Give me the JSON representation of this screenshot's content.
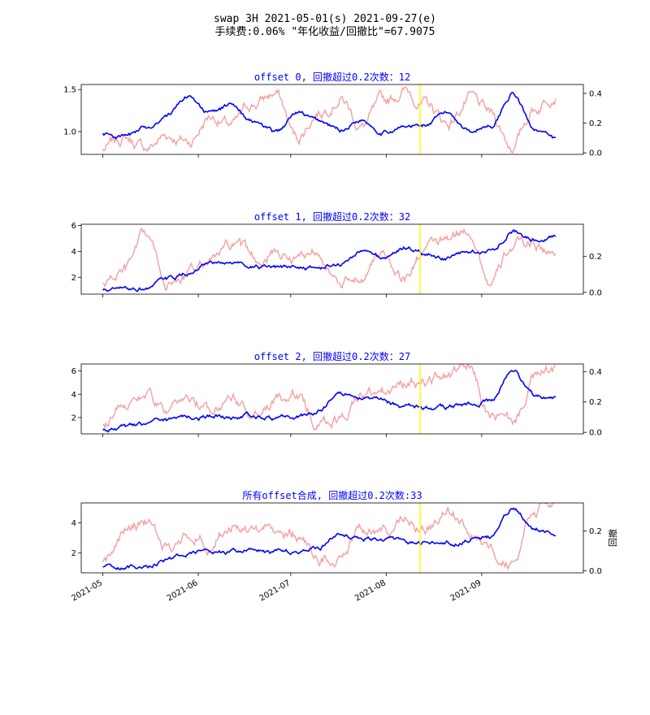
{
  "figure": {
    "title_line1": "swap 3H 2021-05-01(s) 2021-09-27(e)",
    "title_line2": "手续费:0.06% \"年化收益/回撤比\"=67.9075"
  },
  "colors": {
    "equity": "#0000ff",
    "drawdown": "#f4a0a0",
    "marker": "#ffff00",
    "subtitle": "#0000ff"
  },
  "chart_data": [
    {
      "type": "line",
      "title": "offset 0, 回撤超过0.2次数：12",
      "x": [
        "2021-05-01",
        "2021-05-08",
        "2021-05-15",
        "2021-05-22",
        "2021-05-29",
        "2021-06-05",
        "2021-06-12",
        "2021-06-19",
        "2021-06-26",
        "2021-07-03",
        "2021-07-10",
        "2021-07-17",
        "2021-07-24",
        "2021-07-31",
        "2021-08-07",
        "2021-08-14",
        "2021-08-21",
        "2021-08-28",
        "2021-09-04",
        "2021-09-11",
        "2021-09-18",
        "2021-09-25"
      ],
      "series": [
        {
          "axis": "left",
          "values": [
            0.97,
            0.93,
            1.05,
            1.2,
            1.42,
            1.22,
            1.32,
            1.12,
            0.98,
            1.22,
            1.12,
            1.02,
            1.15,
            1.0,
            1.05,
            1.08,
            1.22,
            1.02,
            1.08,
            1.45,
            1.05,
            0.9
          ]
        },
        {
          "axis": "right",
          "values": [
            0.02,
            0.1,
            0.03,
            0.12,
            0.08,
            0.25,
            0.18,
            0.33,
            0.4,
            0.1,
            0.28,
            0.38,
            0.18,
            0.33,
            0.42,
            0.32,
            0.2,
            0.36,
            0.25,
            0.05,
            0.3,
            0.42
          ]
        }
      ],
      "ylim_left": [
        0.73,
        1.56
      ],
      "yticks_left": [
        1.0,
        1.5
      ],
      "yticks_left_labels": [
        "1.0",
        "1.5"
      ],
      "ylim_right": [
        -0.01,
        0.46
      ],
      "yticks_right": [
        0.0,
        0.2,
        0.4
      ],
      "yticks_right_labels": [
        "0.0",
        "0.2",
        "0.4"
      ],
      "marker_date": "2021-08-12"
    },
    {
      "type": "line",
      "title": "offset 1, 回撤超过0.2次数：32",
      "x": [
        "2021-05-01",
        "2021-05-08",
        "2021-05-15",
        "2021-05-22",
        "2021-05-29",
        "2021-06-05",
        "2021-06-12",
        "2021-06-19",
        "2021-06-26",
        "2021-07-03",
        "2021-07-10",
        "2021-07-17",
        "2021-07-24",
        "2021-07-31",
        "2021-08-07",
        "2021-08-14",
        "2021-08-21",
        "2021-08-28",
        "2021-09-04",
        "2021-09-11",
        "2021-09-18",
        "2021-09-25"
      ],
      "series": [
        {
          "axis": "left",
          "values": [
            1.0,
            1.05,
            1.2,
            1.8,
            2.3,
            2.9,
            3.1,
            2.9,
            2.6,
            2.8,
            2.7,
            3.0,
            4.0,
            3.5,
            4.3,
            3.8,
            3.5,
            3.9,
            4.0,
            5.6,
            5.0,
            5.3
          ]
        },
        {
          "axis": "right",
          "values": [
            0.05,
            0.12,
            0.3,
            0.05,
            0.1,
            0.18,
            0.25,
            0.18,
            0.22,
            0.2,
            0.25,
            0.02,
            0.1,
            0.22,
            0.1,
            0.25,
            0.28,
            0.35,
            0.05,
            0.25,
            0.28,
            0.2
          ]
        }
      ],
      "ylim_left": [
        0.7,
        6.1
      ],
      "yticks_left": [
        2,
        4,
        6
      ],
      "yticks_left_labels": [
        "2",
        "4",
        "6"
      ],
      "ylim_right": [
        -0.01,
        0.38
      ],
      "yticks_right": [
        0.0,
        0.2
      ],
      "yticks_right_labels": [
        "0.0",
        "0.2"
      ],
      "marker_date": "2021-08-12"
    },
    {
      "type": "line",
      "title": "offset 2, 回撤超过0.2次数：27",
      "x": [
        "2021-05-01",
        "2021-05-08",
        "2021-05-15",
        "2021-05-22",
        "2021-05-29",
        "2021-06-05",
        "2021-06-12",
        "2021-06-19",
        "2021-06-26",
        "2021-07-03",
        "2021-07-10",
        "2021-07-17",
        "2021-07-24",
        "2021-07-31",
        "2021-08-07",
        "2021-08-14",
        "2021-08-21",
        "2021-08-28",
        "2021-09-04",
        "2021-09-11",
        "2021-09-18",
        "2021-09-25"
      ],
      "series": [
        {
          "axis": "left",
          "values": [
            1.0,
            1.1,
            1.4,
            1.7,
            2.0,
            2.1,
            2.0,
            2.2,
            1.9,
            2.0,
            2.6,
            4.3,
            3.6,
            3.4,
            2.9,
            2.8,
            2.8,
            3.2,
            3.4,
            6.1,
            4.0,
            3.6
          ]
        },
        {
          "axis": "right",
          "values": [
            0.05,
            0.22,
            0.25,
            0.12,
            0.2,
            0.15,
            0.25,
            0.1,
            0.2,
            0.22,
            0.05,
            0.08,
            0.25,
            0.25,
            0.3,
            0.35,
            0.38,
            0.4,
            0.1,
            0.05,
            0.35,
            0.42
          ]
        }
      ],
      "ylim_left": [
        0.6,
        6.6
      ],
      "yticks_left": [
        2,
        4,
        6
      ],
      "yticks_left_labels": [
        "2",
        "4",
        "6"
      ],
      "ylim_right": [
        -0.01,
        0.45
      ],
      "yticks_right": [
        0.0,
        0.2,
        0.4
      ],
      "yticks_right_labels": [
        "0.0",
        "0.2",
        "0.4"
      ],
      "marker_date": "2021-08-12"
    },
    {
      "type": "line",
      "title": "所有offset合成, 回撤超过0.2次数:33",
      "x": [
        "2021-05-01",
        "2021-05-08",
        "2021-05-15",
        "2021-05-22",
        "2021-05-29",
        "2021-06-05",
        "2021-06-12",
        "2021-06-19",
        "2021-06-26",
        "2021-07-03",
        "2021-07-10",
        "2021-07-17",
        "2021-07-24",
        "2021-07-31",
        "2021-08-07",
        "2021-08-14",
        "2021-08-21",
        "2021-08-28",
        "2021-09-04",
        "2021-09-11",
        "2021-09-18",
        "2021-09-25"
      ],
      "series": [
        {
          "axis": "left",
          "values": [
            1.0,
            1.05,
            1.2,
            1.6,
            2.0,
            2.1,
            2.0,
            2.2,
            2.0,
            2.1,
            2.4,
            3.3,
            3.0,
            2.9,
            2.7,
            2.6,
            2.6,
            2.8,
            3.0,
            4.9,
            3.6,
            3.4
          ]
        },
        {
          "axis": "right",
          "values": [
            0.05,
            0.2,
            0.25,
            0.1,
            0.2,
            0.15,
            0.25,
            0.2,
            0.22,
            0.2,
            0.05,
            0.08,
            0.22,
            0.2,
            0.25,
            0.2,
            0.3,
            0.2,
            0.1,
            0.05,
            0.3,
            0.33
          ]
        }
      ],
      "ylim_left": [
        0.7,
        5.3
      ],
      "yticks_left": [
        2,
        4
      ],
      "yticks_left_labels": [
        "2",
        "4"
      ],
      "ylim_right": [
        -0.01,
        0.34
      ],
      "yticks_right": [
        0.0,
        0.2
      ],
      "yticks_right_labels": [
        "0.0",
        "0.2"
      ],
      "ylabel_right": "回撤",
      "marker_date": "2021-08-12",
      "xticks": [
        "2021-05-01",
        "2021-06-01",
        "2021-07-01",
        "2021-08-01",
        "2021-09-01"
      ],
      "xtick_labels": [
        "2021-05",
        "2021-06",
        "2021-07",
        "2021-08",
        "2021-09"
      ]
    }
  ],
  "shared_xlim": [
    "2021-04-24",
    "2021-10-04"
  ]
}
